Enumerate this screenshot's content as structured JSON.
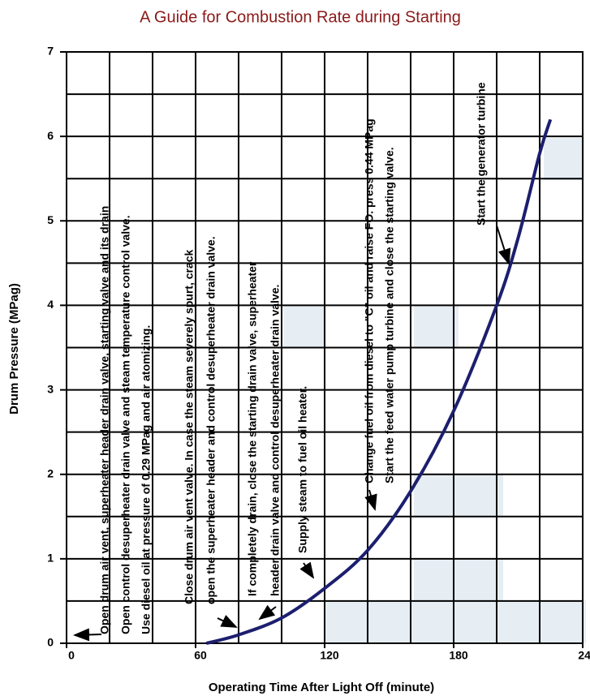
{
  "chart_data": {
    "type": "line",
    "title": "A Guide for Combustion Rate during Starting",
    "xlabel": "Operating Time After Light Off (minute)",
    "ylabel": "Drum Pressure (MPag)",
    "x": [
      65,
      80,
      100,
      120,
      140,
      160,
      180,
      200,
      210,
      220,
      225
    ],
    "values": [
      0,
      0.1,
      0.3,
      0.65,
      1.1,
      1.8,
      2.75,
      4.0,
      4.8,
      5.8,
      6.2
    ],
    "color": "#1c1f6e",
    "xlim": [
      0,
      240
    ],
    "ylim": [
      0,
      7
    ],
    "xticks": [
      0,
      60,
      120,
      180,
      240
    ],
    "yticks": [
      0,
      1,
      2,
      3,
      4,
      5,
      6,
      7
    ],
    "grid": true,
    "annotations": [
      {
        "lines": [
          "Open drum air vent, superheater header drain valve, starting valve and its drain",
          "Open control desuperheater drain valve and steam temperature control valve.",
          "Use diesel oil at pressure of 0.29 MPag and air atomizing."
        ]
      },
      {
        "lines": [
          "Close drum air vent valve. In case the steam severely spurt, crack",
          "open the superheater header and control desuperheater drain valve."
        ]
      },
      {
        "lines": [
          "If completely drain, close the starting drain valve, superheater",
          "header drain valve and control desuperheater drain valve."
        ]
      },
      {
        "lines": [
          "Supply steam to fuel oil heater."
        ]
      },
      {
        "lines": [
          "Change fuel oil from diesel to \"C\" oil and raise FO. press 0.44 MPag",
          "Start the feed water pump turbine and close the starting valve."
        ]
      },
      {
        "lines": [
          "Start the generator turbine"
        ]
      }
    ]
  }
}
